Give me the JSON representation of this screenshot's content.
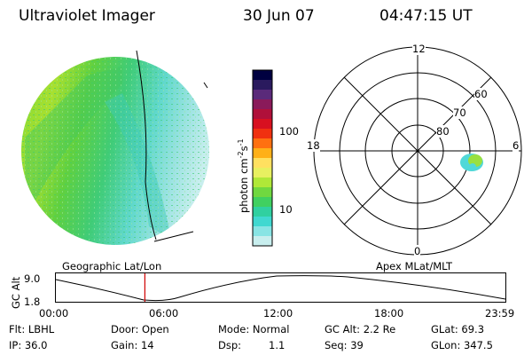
{
  "header": {
    "title": "Ultraviolet Imager",
    "date": "30 Jun 07",
    "time": "04:47:15 UT"
  },
  "colorbar": {
    "label": "photon cm",
    "label_sup1": "-2",
    "label_mid": "s",
    "label_sup2": "-1",
    "ticks": [
      "100",
      "10"
    ],
    "colors": [
      "#000040",
      "#2a1a5e",
      "#5a2a7a",
      "#8a1a5a",
      "#b0103a",
      "#d81020",
      "#f03010",
      "#ff7010",
      "#ffb018",
      "#ffe060",
      "#e8f060",
      "#b0e838",
      "#70d840",
      "#40d060",
      "#30d0a0",
      "#40d8d0",
      "#88e4e4",
      "#c8eeee"
    ]
  },
  "polar": {
    "labels": [
      "12",
      "18",
      "6",
      "0",
      "60",
      "70",
      "80"
    ]
  },
  "timeline": {
    "left_label": "Geographic Lat/Lon",
    "right_label": "Apex MLat/MLT",
    "axis_label": "GC Alt",
    "y_ticks": [
      "9.0",
      "1.8"
    ],
    "x_ticks": [
      "00:00",
      "06:00",
      "12:00",
      "18:00",
      "23:59"
    ],
    "current_time_fraction": 0.198
  },
  "info": {
    "filter": "Flt: LBHL",
    "ip": "IP: 36.0",
    "door": "Door: Open",
    "gain": "Gain: 14",
    "mode": "Mode: Normal",
    "dsp": "Dsp:",
    "dsp_val": "1.1",
    "gc_alt": "GC Alt: 2.2 Re",
    "seq": "Seq: 39",
    "glat": "GLat:  69.3",
    "glon": "GLon: 347.5"
  },
  "colors": {
    "marker": "#d00000",
    "outline": "#000000"
  }
}
